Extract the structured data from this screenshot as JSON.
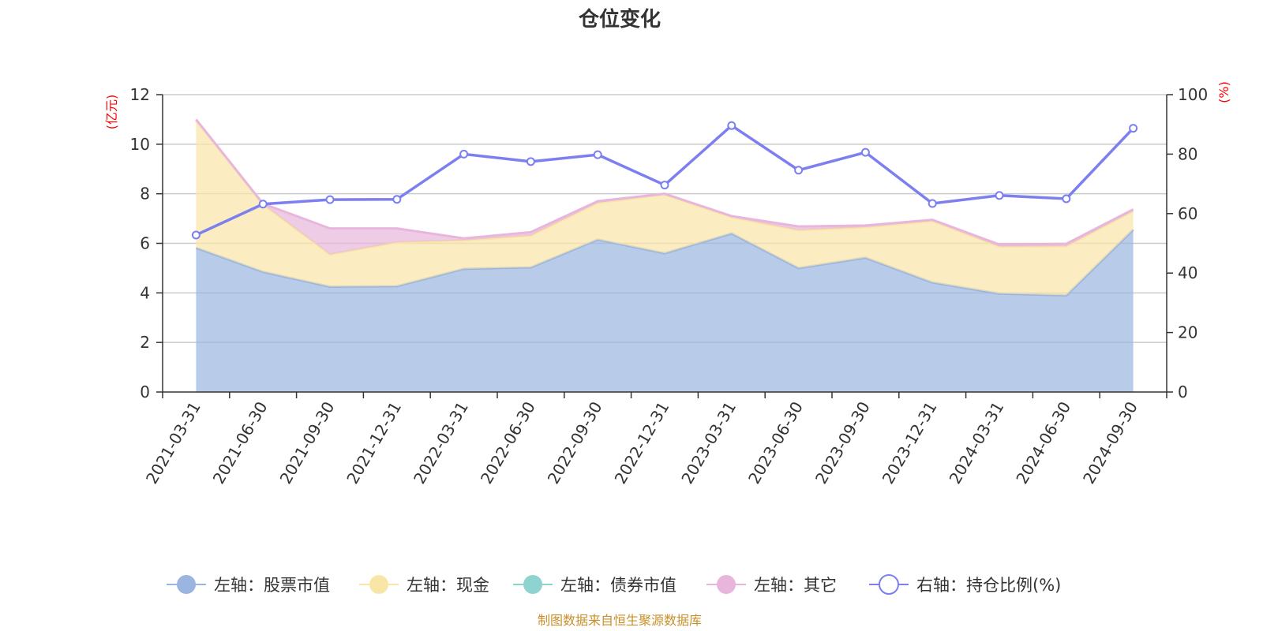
{
  "chart_data": {
    "type": "area",
    "title": "仓位变化",
    "left_axis_unit": "(亿元)",
    "right_axis_unit": "(%)",
    "categories": [
      "2021-03-31",
      "2021-06-30",
      "2021-09-30",
      "2021-12-31",
      "2022-03-31",
      "2022-06-30",
      "2022-09-30",
      "2022-12-31",
      "2023-03-31",
      "2023-06-30",
      "2023-09-30",
      "2023-12-31",
      "2024-03-31",
      "2024-06-30",
      "2024-09-30"
    ],
    "left_ylim": [
      0,
      12
    ],
    "left_yticks": [
      0,
      2,
      4,
      6,
      8,
      10,
      12
    ],
    "right_ylim": [
      0,
      100
    ],
    "right_yticks": [
      0,
      20,
      40,
      60,
      80,
      100
    ],
    "series": [
      {
        "name": "左轴：股票市值",
        "axis": "left",
        "stack": true,
        "color": "#9ab5e0",
        "values": [
          5.82,
          4.85,
          4.25,
          4.27,
          4.97,
          5.03,
          6.15,
          5.6,
          6.4,
          5.0,
          5.42,
          4.42,
          3.97,
          3.9,
          6.55
        ]
      },
      {
        "name": "左轴：现金",
        "axis": "left",
        "stack": true,
        "color": "#f9e6a6",
        "values": [
          5.13,
          2.72,
          1.3,
          1.77,
          1.15,
          1.28,
          1.48,
          2.37,
          0.65,
          1.53,
          1.23,
          2.48,
          1.9,
          1.98,
          0.75
        ]
      },
      {
        "name": "左轴：债券市值",
        "axis": "left",
        "stack": true,
        "color": "#8fd3d1",
        "values": [
          0,
          0,
          0,
          0,
          0,
          0,
          0,
          0,
          0,
          0,
          0,
          0,
          0,
          0,
          0
        ]
      },
      {
        "name": "左轴：其它",
        "axis": "left",
        "stack": true,
        "color": "#e8b6dc",
        "values": [
          0.05,
          0.03,
          1.05,
          0.56,
          0.08,
          0.14,
          0.07,
          0.03,
          0.05,
          0.15,
          0.07,
          0.05,
          0.08,
          0.1,
          0.07
        ]
      },
      {
        "name": "右轴：持仓比例(%)",
        "axis": "right",
        "stack": false,
        "color": "#7b7ff0",
        "values": [
          52.8,
          63.2,
          64.7,
          64.8,
          80.0,
          77.5,
          79.8,
          69.6,
          89.6,
          74.6,
          80.6,
          63.4,
          66.1,
          65.0,
          88.7
        ]
      }
    ],
    "grid": true,
    "legend_position": "bottom"
  },
  "footer": {
    "text": "制图数据来自恒生聚源数据库"
  }
}
